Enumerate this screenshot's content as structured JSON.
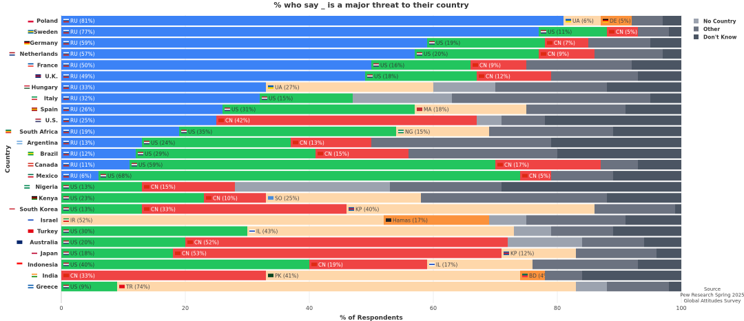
{
  "chart_data": {
    "type": "bar",
    "orientation": "horizontal",
    "stacked": true,
    "title": "% who say _ is a major threat to their country",
    "xlabel": "% of Respondents",
    "ylabel": "Country",
    "xlim": [
      0,
      100
    ],
    "xticks": [
      0,
      20,
      40,
      60,
      80,
      100
    ],
    "grid": true,
    "legend": {
      "placement": "top-right",
      "entries": [
        {
          "name": "No Country",
          "color": "#9ca3af"
        },
        {
          "name": "Other",
          "color": "#6b7280"
        },
        {
          "name": "Don't Know",
          "color": "#4b5563"
        }
      ]
    },
    "source": [
      "Source",
      "Pew Research Spring 2025",
      "Global Attitudes Survey"
    ],
    "colors": {
      "RU": "#3b82f6",
      "US": "#22c55e",
      "CN": "#ef4444",
      "country_a": "#fed7aa",
      "country_b": "#fb923c",
      "No Country": "#9ca3af",
      "Other": "#6b7280",
      "Don't Know": "#4b5563"
    },
    "rows": [
      {
        "country": "Poland",
        "flag": "PL",
        "threats": [
          [
            "RU",
            81,
            "RU"
          ],
          [
            "UA",
            6,
            "country_a"
          ],
          [
            "DE",
            5,
            "country_b"
          ]
        ],
        "no_country": 0,
        "other": 5,
        "dont_know": 3
      },
      {
        "country": "Sweden",
        "flag": "SE",
        "threats": [
          [
            "RU",
            77,
            "RU"
          ],
          [
            "US",
            11,
            "US"
          ],
          [
            "CN",
            5,
            "CN"
          ]
        ],
        "no_country": 0,
        "other": 5,
        "dont_know": 2
      },
      {
        "country": "Germany",
        "flag": "DE",
        "threats": [
          [
            "RU",
            59,
            "RU"
          ],
          [
            "US",
            19,
            "US"
          ],
          [
            "CN",
            7,
            "CN"
          ]
        ],
        "no_country": 0,
        "other": 10,
        "dont_know": 5
      },
      {
        "country": "Netherlands",
        "flag": "NL",
        "threats": [
          [
            "RU",
            57,
            "RU"
          ],
          [
            "US",
            20,
            "US"
          ],
          [
            "CN",
            9,
            "CN"
          ]
        ],
        "no_country": 0,
        "other": 11,
        "dont_know": 3
      },
      {
        "country": "France",
        "flag": "FR",
        "threats": [
          [
            "RU",
            50,
            "RU"
          ],
          [
            "US",
            16,
            "US"
          ],
          [
            "CN",
            9,
            "CN"
          ]
        ],
        "no_country": 0,
        "other": 17,
        "dont_know": 8
      },
      {
        "country": "U.K.",
        "flag": "GB",
        "threats": [
          [
            "RU",
            49,
            "RU"
          ],
          [
            "US",
            18,
            "US"
          ],
          [
            "CN",
            12,
            "CN"
          ]
        ],
        "no_country": 0,
        "other": 14,
        "dont_know": 7
      },
      {
        "country": "Hungary",
        "flag": "HU",
        "threats": [
          [
            "RU",
            33,
            "RU"
          ],
          [
            "UA",
            27,
            "country_a"
          ]
        ],
        "no_country": 10,
        "other": 18,
        "dont_know": 12
      },
      {
        "country": "Italy",
        "flag": "IT",
        "threats": [
          [
            "RU",
            32,
            "RU"
          ],
          [
            "US",
            15,
            "US"
          ]
        ],
        "no_country": 16,
        "other": 32,
        "dont_know": 5
      },
      {
        "country": "Spain",
        "flag": "ES",
        "threats": [
          [
            "RU",
            26,
            "RU"
          ],
          [
            "US",
            31,
            "US"
          ],
          [
            "MA",
            18,
            "country_a"
          ]
        ],
        "no_country": 0,
        "other": 16,
        "dont_know": 9
      },
      {
        "country": "U.S.",
        "flag": "US",
        "threats": [
          [
            "RU",
            25,
            "RU"
          ],
          [
            "CN",
            42,
            "CN"
          ]
        ],
        "no_country": 4,
        "other": 7,
        "dont_know": 22
      },
      {
        "country": "South Africa",
        "flag": "ZA",
        "threats": [
          [
            "RU",
            19,
            "RU"
          ],
          [
            "US",
            35,
            "US"
          ],
          [
            "NG",
            15,
            "country_a"
          ]
        ],
        "no_country": 0,
        "other": 20,
        "dont_know": 11
      },
      {
        "country": "Argentina",
        "flag": "AR",
        "threats": [
          [
            "RU",
            13,
            "RU"
          ],
          [
            "US",
            24,
            "US"
          ],
          [
            "CN",
            13,
            "CN"
          ]
        ],
        "no_country": 0,
        "other": 29,
        "dont_know": 21
      },
      {
        "country": "Brazil",
        "flag": "BR",
        "threats": [
          [
            "RU",
            12,
            "RU"
          ],
          [
            "US",
            29,
            "US"
          ],
          [
            "CN",
            15,
            "CN"
          ]
        ],
        "no_country": 0,
        "other": 24,
        "dont_know": 20
      },
      {
        "country": "Canada",
        "flag": "CA",
        "threats": [
          [
            "RU",
            11,
            "RU"
          ],
          [
            "US",
            59,
            "US"
          ],
          [
            "CN",
            17,
            "CN"
          ]
        ],
        "no_country": 0,
        "other": 6,
        "dont_know": 7
      },
      {
        "country": "Mexico",
        "flag": "MX",
        "threats": [
          [
            "RU",
            6,
            "RU"
          ],
          [
            "US",
            68,
            "US"
          ],
          [
            "CN",
            5,
            "CN"
          ]
        ],
        "no_country": 0,
        "other": 10,
        "dont_know": 11
      },
      {
        "country": "Nigeria",
        "flag": "NG",
        "threats": [
          [
            "US",
            13,
            "US"
          ],
          [
            "CN",
            15,
            "CN"
          ]
        ],
        "no_country": 25,
        "other": 18,
        "dont_know": 29
      },
      {
        "country": "Kenya",
        "flag": "KE",
        "threats": [
          [
            "US",
            23,
            "US"
          ],
          [
            "CN",
            10,
            "CN"
          ],
          [
            "SO",
            25,
            "country_a"
          ]
        ],
        "no_country": 0,
        "other": 30,
        "dont_know": 12
      },
      {
        "country": "South Korea",
        "flag": "KR",
        "threats": [
          [
            "US",
            13,
            "US"
          ],
          [
            "CN",
            33,
            "CN"
          ],
          [
            "KP",
            40,
            "country_a"
          ]
        ],
        "no_country": 0,
        "other": 13,
        "dont_know": 1
      },
      {
        "country": "Israel",
        "flag": "IL",
        "threats": [
          [
            "IR",
            52,
            "country_a"
          ],
          [
            "Hamas",
            17,
            "country_b"
          ]
        ],
        "no_country": 6,
        "other": 16,
        "dont_know": 9
      },
      {
        "country": "Turkey",
        "flag": "TR",
        "threats": [
          [
            "US",
            30,
            "US"
          ],
          [
            "IL",
            43,
            "country_a"
          ]
        ],
        "no_country": 6,
        "other": 10,
        "dont_know": 11
      },
      {
        "country": "Australia",
        "flag": "AU",
        "threats": [
          [
            "US",
            20,
            "US"
          ],
          [
            "CN",
            52,
            "CN"
          ]
        ],
        "no_country": 12,
        "other": 10,
        "dont_know": 6
      },
      {
        "country": "Japan",
        "flag": "JP",
        "threats": [
          [
            "US",
            18,
            "US"
          ],
          [
            "CN",
            53,
            "CN"
          ],
          [
            "KP",
            12,
            "country_a"
          ]
        ],
        "no_country": 0,
        "other": 13,
        "dont_know": 4
      },
      {
        "country": "Indonesia",
        "flag": "ID",
        "threats": [
          [
            "US",
            40,
            "US"
          ],
          [
            "CN",
            19,
            "CN"
          ],
          [
            "IL",
            17,
            "country_a"
          ]
        ],
        "no_country": 0,
        "other": 17,
        "dont_know": 7
      },
      {
        "country": "India",
        "flag": "IN",
        "threats": [
          [
            "CN",
            33,
            "CN"
          ],
          [
            "PK",
            41,
            "country_a"
          ],
          [
            "BD",
            4,
            "country_b"
          ]
        ],
        "no_country": 0,
        "other": 6,
        "dont_know": 16
      },
      {
        "country": "Greece",
        "flag": "GR",
        "threats": [
          [
            "US",
            9,
            "US"
          ],
          [
            "TR",
            74,
            "country_a"
          ]
        ],
        "no_country": 5,
        "other": 10,
        "dont_know": 2
      }
    ]
  }
}
